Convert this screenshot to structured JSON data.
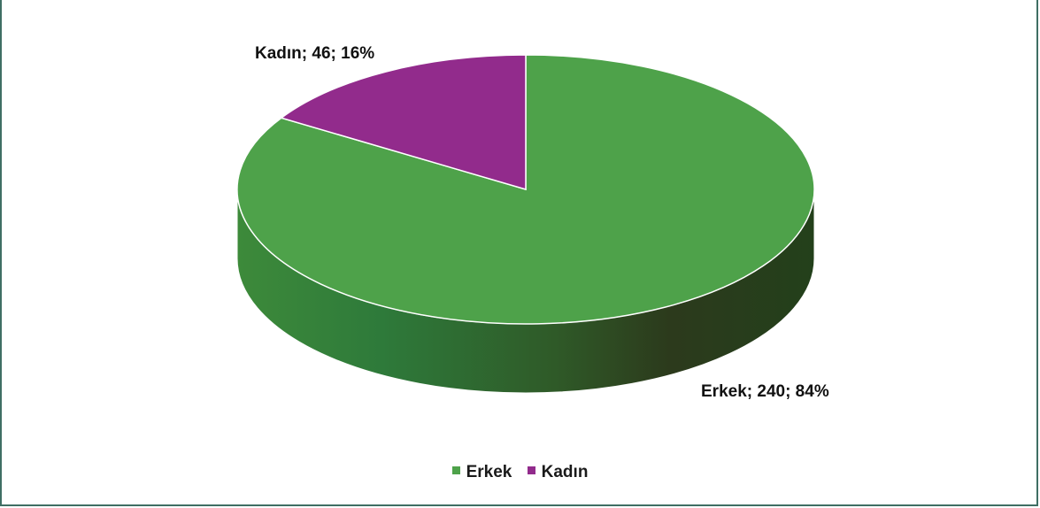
{
  "chart_data": {
    "type": "pie",
    "style": "3d",
    "categories": [
      "Erkek",
      "Kadın"
    ],
    "values": [
      240,
      46
    ],
    "percents": [
      84,
      16
    ],
    "labels": [
      "Erkek; 240; 84%",
      "Kadın; 46; 16%"
    ],
    "colors": [
      "#4ea24a",
      "#922b8c"
    ],
    "legend_position": "bottom"
  }
}
